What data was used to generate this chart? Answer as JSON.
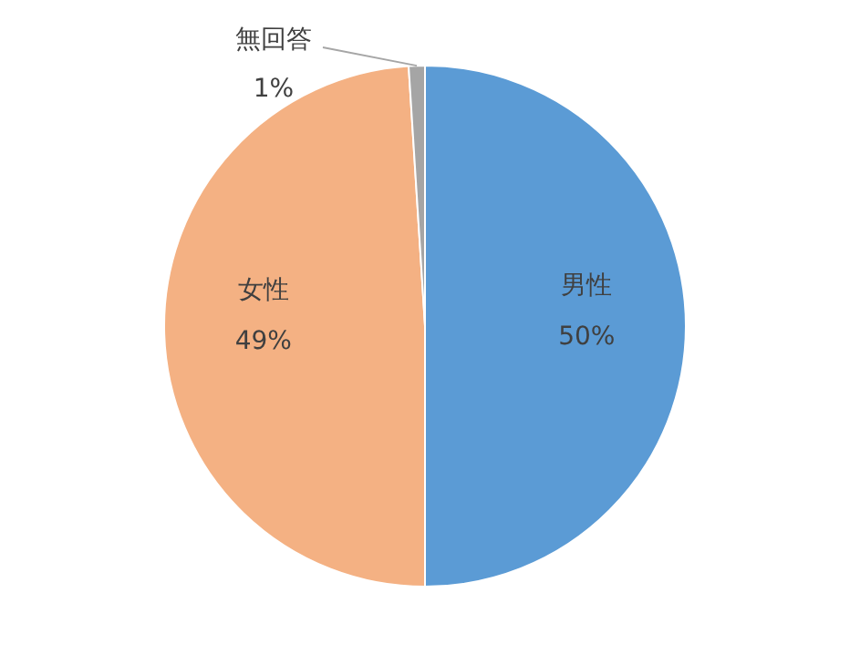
{
  "chart_data": {
    "type": "pie",
    "categories": [
      "男性",
      "女性",
      "無回答"
    ],
    "values": [
      50,
      49,
      1
    ],
    "colors": [
      "#5b9bd5",
      "#f4b183",
      "#a5a5a5"
    ],
    "value_labels": [
      "50%",
      "49%",
      "1%"
    ]
  }
}
